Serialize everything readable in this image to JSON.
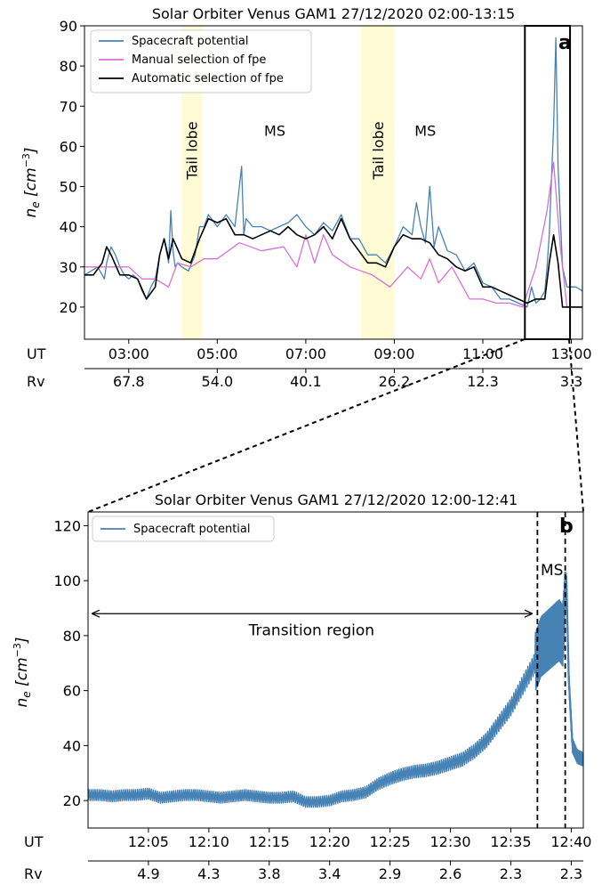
{
  "chart_data": [
    {
      "panel_label": "a",
      "type": "line",
      "title": "Solar Orbiter Venus GAM1 27/12/2020 02:00-13:15",
      "ylabel": "n_e [cm^-3]",
      "ylim": [
        12,
        90
      ],
      "xlim_hours": [
        2.0,
        13.25
      ],
      "yticks": [
        20,
        30,
        40,
        50,
        60,
        70,
        80,
        90
      ],
      "x_axis_rows": [
        {
          "label": "UT",
          "ticks": [
            "03:00",
            "05:00",
            "07:00",
            "09:00",
            "11:00",
            "13:00"
          ],
          "tick_hours": [
            3,
            5,
            7,
            9,
            11,
            13
          ]
        },
        {
          "label": "Rv",
          "ticks": [
            "67.8",
            "54.0",
            "40.1",
            "26.2",
            "12.3",
            "3.3"
          ],
          "tick_hours": [
            3,
            5,
            7,
            9,
            11,
            13
          ]
        }
      ],
      "legend": {
        "placement": "upper-left"
      },
      "shaded_regions": [
        {
          "label": "Tail lobe",
          "start": 4.2,
          "end": 4.65,
          "color": "#fffacd"
        },
        {
          "label": "Tail lobe",
          "start": 8.25,
          "end": 9.0,
          "color": "#fffacd"
        }
      ],
      "annotations": [
        {
          "text": "MS",
          "x": 6.3,
          "y": 64
        },
        {
          "text": "MS",
          "x": 9.7,
          "y": 64
        }
      ],
      "zoom_box": {
        "x_start": 11.95,
        "x_end": 12.97,
        "y_start": 12,
        "y_end": 90
      },
      "series": [
        {
          "name": "Spacecraft potential",
          "color": "#4682b4",
          "x": [
            2.0,
            2.15,
            2.3,
            2.45,
            2.5,
            2.6,
            2.7,
            2.8,
            2.9,
            3.0,
            3.1,
            3.2,
            3.3,
            3.4,
            3.5,
            3.6,
            3.7,
            3.8,
            3.9,
            3.95,
            4.0,
            4.05,
            4.1,
            4.2,
            4.35,
            4.5,
            4.6,
            4.7,
            4.8,
            5.0,
            5.2,
            5.4,
            5.55,
            5.6,
            5.65,
            5.8,
            6.0,
            6.2,
            6.4,
            6.6,
            6.8,
            7.0,
            7.2,
            7.4,
            7.6,
            7.8,
            8.0,
            8.2,
            8.4,
            8.6,
            8.8,
            9.0,
            9.2,
            9.4,
            9.5,
            9.6,
            9.7,
            9.8,
            9.9,
            10.0,
            10.2,
            10.4,
            10.6,
            10.8,
            11.0,
            11.2,
            11.4,
            11.6,
            11.8,
            12.0,
            12.1,
            12.2,
            12.3,
            12.4,
            12.45,
            12.5,
            12.55,
            12.6,
            12.65,
            12.7,
            12.8,
            12.9,
            13.0,
            13.1,
            13.25
          ],
          "y": [
            28,
            29,
            30,
            27,
            31,
            35,
            33,
            30,
            28,
            27,
            28,
            27,
            24,
            22,
            25,
            27,
            33,
            37,
            31,
            44,
            34,
            30,
            31,
            30,
            29,
            33,
            40,
            40,
            43,
            40,
            43,
            40,
            55,
            38,
            42,
            40,
            40,
            39,
            40,
            41,
            43,
            40,
            38,
            41,
            39,
            43,
            37,
            37,
            33,
            33,
            31,
            35,
            40,
            38,
            46,
            40,
            36,
            50,
            35,
            40,
            34,
            33,
            29,
            31,
            26,
            25,
            22,
            22,
            21,
            20,
            25,
            21,
            22,
            24,
            30,
            38,
            52,
            65,
            87,
            55,
            30,
            25,
            25,
            25,
            24
          ]
        },
        {
          "name": "Manual selection of fpe",
          "color": "#da70d6",
          "x": [
            2.0,
            2.3,
            2.6,
            3.0,
            3.3,
            3.6,
            3.9,
            4.1,
            4.4,
            4.7,
            5.0,
            5.5,
            6.0,
            6.5,
            6.8,
            7.0,
            7.2,
            7.4,
            7.6,
            8.0,
            8.5,
            8.9,
            9.3,
            9.6,
            9.8,
            10.0,
            10.3,
            10.7,
            11.0,
            11.3,
            11.6,
            11.9,
            12.2,
            12.45,
            12.6,
            12.75,
            12.9,
            13.25
          ],
          "y": [
            30,
            30,
            30,
            30,
            27,
            27,
            25,
            31,
            30,
            32,
            32,
            36,
            34,
            35,
            30,
            38,
            31,
            38,
            33,
            30,
            28,
            25,
            30,
            27,
            32,
            26,
            30,
            22,
            22,
            21,
            21,
            20,
            30,
            44,
            56,
            35,
            20,
            20
          ]
        },
        {
          "name": "Automatic selection of fpe",
          "color": "#000000",
          "x": [
            2.0,
            2.2,
            2.4,
            2.5,
            2.6,
            2.8,
            3.0,
            3.2,
            3.4,
            3.6,
            3.7,
            3.8,
            3.9,
            4.0,
            4.2,
            4.4,
            4.6,
            4.8,
            5.0,
            5.2,
            5.4,
            5.6,
            5.8,
            6.0,
            6.2,
            6.4,
            6.6,
            6.8,
            7.0,
            7.2,
            7.4,
            7.6,
            7.8,
            8.0,
            8.2,
            8.4,
            8.6,
            8.8,
            9.0,
            9.2,
            9.4,
            9.6,
            9.8,
            10.0,
            10.2,
            10.4,
            10.6,
            10.8,
            11.0,
            11.2,
            11.4,
            11.6,
            11.8,
            12.0,
            12.2,
            12.4,
            12.5,
            12.6,
            12.7,
            12.8,
            12.9,
            13.25
          ],
          "y": [
            28,
            28,
            31,
            35,
            33,
            28,
            28,
            27,
            22,
            25,
            33,
            37,
            32,
            37,
            32,
            31,
            37,
            42,
            41,
            42,
            38,
            38,
            37,
            38,
            39,
            38,
            40,
            38,
            37,
            38,
            40,
            37,
            42,
            37,
            34,
            31,
            31,
            30,
            35,
            38,
            37,
            37,
            36,
            33,
            32,
            30,
            29,
            30,
            25,
            25,
            24,
            23,
            22,
            21,
            22,
            22,
            31,
            38,
            31,
            20,
            20,
            20
          ]
        }
      ]
    },
    {
      "panel_label": "b",
      "type": "line",
      "title": "Solar Orbiter Venus GAM1 27/12/2020 12:00-12:41",
      "ylabel": "n_e [cm^-3]",
      "ylim": [
        10,
        125
      ],
      "xlim_minutes": [
        0,
        41
      ],
      "yticks": [
        20,
        40,
        60,
        80,
        100,
        120
      ],
      "x_axis_rows": [
        {
          "label": "UT",
          "ticks": [
            "12:05",
            "12:10",
            "12:15",
            "12:20",
            "12:25",
            "12:30",
            "12:35",
            "12:40"
          ],
          "tick_minutes": [
            5,
            10,
            15,
            20,
            25,
            30,
            35,
            40
          ]
        },
        {
          "label": "Rv",
          "ticks": [
            "4.9",
            "4.3",
            "3.8",
            "3.4",
            "2.9",
            "2.6",
            "2.3",
            "2.3"
          ],
          "tick_minutes": [
            5,
            10,
            15,
            20,
            25,
            30,
            35,
            40
          ]
        }
      ],
      "legend": {
        "placement": "upper-left"
      },
      "boundaries": [
        37.2,
        39.5
      ],
      "annotations": [
        {
          "text": "Transition region",
          "x": 18.5,
          "y": 82
        },
        {
          "text": "MS",
          "x": 38.4,
          "y": 104
        }
      ],
      "arrow": {
        "x_start": 0.3,
        "x_end": 36.8,
        "y": 88
      },
      "series": [
        {
          "name": "Spacecraft potential",
          "color": "#4682b4",
          "x": [
            0,
            1,
            2,
            3,
            4,
            5,
            6,
            7,
            8,
            9,
            10,
            11,
            12,
            13,
            14,
            15,
            16,
            17,
            18,
            19,
            20,
            21,
            22,
            23,
            24,
            25,
            26,
            27,
            28,
            29,
            30,
            31,
            32,
            33,
            34,
            35,
            36,
            37,
            37.5,
            38,
            38.5,
            39,
            39.3,
            39.6,
            39.8,
            40.1,
            40.5,
            41
          ],
          "y": [
            22,
            22,
            21.5,
            22,
            22,
            22.5,
            21,
            21.5,
            22,
            22,
            21.5,
            21,
            21.5,
            22,
            21.5,
            21,
            21,
            21.5,
            19.5,
            19.5,
            20,
            21.5,
            22,
            23,
            26,
            28,
            29.5,
            30.5,
            31,
            32,
            33.5,
            35,
            38,
            42,
            48,
            54,
            62,
            70,
            76,
            78,
            80,
            82,
            80,
            100,
            64,
            40,
            36,
            35
          ]
        }
      ]
    }
  ]
}
